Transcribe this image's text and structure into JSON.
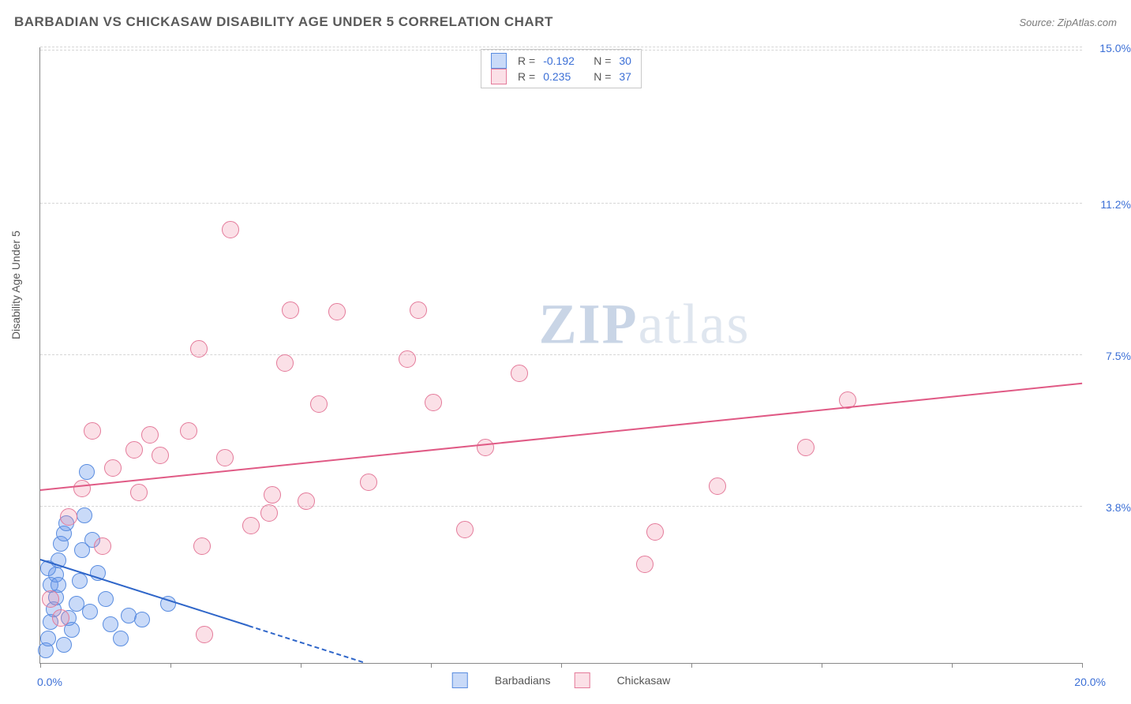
{
  "header": {
    "title": "BARBADIAN VS CHICKASAW DISABILITY AGE UNDER 5 CORRELATION CHART",
    "source_prefix": "Source: ",
    "source": "ZipAtlas.com"
  },
  "chart": {
    "type": "scatter",
    "ylabel": "Disability Age Under 5",
    "xlim": [
      0,
      20
    ],
    "ylim": [
      0,
      15
    ],
    "xticks": [
      0,
      2.5,
      5,
      7.5,
      10,
      12.5,
      15,
      17.5,
      20
    ],
    "yticks": [
      {
        "v": 3.8,
        "label": "3.8%"
      },
      {
        "v": 7.5,
        "label": "7.5%"
      },
      {
        "v": 11.2,
        "label": "11.2%"
      },
      {
        "v": 15.0,
        "label": "15.0%"
      }
    ],
    "xmin_label": "0.0%",
    "xmax_label": "20.0%",
    "background_color": "#ffffff",
    "grid_color": "#d6d6d6",
    "axis_color": "#888888",
    "tick_label_color": "#3b6fd6",
    "watermark": {
      "bold": "ZIP",
      "rest": "atlas"
    },
    "series": [
      {
        "name": "Barbadians",
        "fill_color": "rgba(100,150,235,0.35)",
        "stroke_color": "#5a8de0",
        "marker_size": 18,
        "R": "-0.192",
        "N": "30",
        "trend": {
          "x1": 0,
          "y1": 2.5,
          "x2": 6.2,
          "y2": 0,
          "color": "#2f66c9",
          "width": 2,
          "dash_after_x": 4.0
        },
        "points": [
          [
            0.1,
            0.3
          ],
          [
            0.15,
            0.6
          ],
          [
            0.2,
            1.0
          ],
          [
            0.25,
            1.3
          ],
          [
            0.3,
            1.6
          ],
          [
            0.2,
            1.9
          ],
          [
            0.3,
            2.15
          ],
          [
            0.35,
            2.5
          ],
          [
            0.4,
            2.9
          ],
          [
            0.45,
            3.15
          ],
          [
            0.5,
            3.4
          ],
          [
            0.55,
            1.1
          ],
          [
            0.6,
            0.8
          ],
          [
            0.7,
            1.45
          ],
          [
            0.75,
            2.0
          ],
          [
            0.8,
            2.75
          ],
          [
            0.85,
            3.6
          ],
          [
            0.95,
            1.25
          ],
          [
            1.0,
            3.0
          ],
          [
            1.1,
            2.2
          ],
          [
            1.25,
            1.55
          ],
          [
            1.35,
            0.95
          ],
          [
            0.9,
            4.65
          ],
          [
            1.55,
            0.6
          ],
          [
            1.7,
            1.15
          ],
          [
            1.95,
            1.05
          ],
          [
            2.45,
            1.45
          ],
          [
            0.35,
            1.9
          ],
          [
            0.15,
            2.3
          ],
          [
            0.45,
            0.45
          ]
        ]
      },
      {
        "name": "Chickasaw",
        "fill_color": "rgba(240,130,160,0.25)",
        "stroke_color": "#e47a9a",
        "marker_size": 20,
        "R": "0.235",
        "N": "37",
        "trend": {
          "x1": 0,
          "y1": 4.2,
          "x2": 20,
          "y2": 6.8,
          "color": "#e05a85",
          "width": 2
        },
        "points": [
          [
            0.2,
            1.55
          ],
          [
            0.4,
            1.1
          ],
          [
            0.55,
            3.55
          ],
          [
            0.8,
            4.25
          ],
          [
            1.0,
            5.65
          ],
          [
            1.2,
            2.85
          ],
          [
            1.4,
            4.75
          ],
          [
            1.8,
            5.2
          ],
          [
            1.9,
            4.15
          ],
          [
            2.1,
            5.55
          ],
          [
            2.3,
            5.05
          ],
          [
            2.85,
            5.65
          ],
          [
            3.05,
            7.65
          ],
          [
            3.1,
            2.85
          ],
          [
            3.15,
            0.7
          ],
          [
            3.55,
            5.0
          ],
          [
            3.65,
            10.55
          ],
          [
            4.05,
            3.35
          ],
          [
            4.4,
            3.65
          ],
          [
            4.45,
            4.1
          ],
          [
            4.7,
            7.3
          ],
          [
            4.8,
            8.6
          ],
          [
            5.1,
            3.95
          ],
          [
            5.35,
            6.3
          ],
          [
            5.7,
            8.55
          ],
          [
            6.3,
            4.4
          ],
          [
            7.05,
            7.4
          ],
          [
            7.25,
            8.6
          ],
          [
            7.55,
            6.35
          ],
          [
            8.15,
            3.25
          ],
          [
            8.55,
            5.25
          ],
          [
            9.2,
            7.05
          ],
          [
            11.6,
            2.4
          ],
          [
            11.8,
            3.2
          ],
          [
            13.0,
            4.3
          ],
          [
            14.7,
            5.25
          ],
          [
            15.5,
            6.4
          ]
        ]
      }
    ],
    "legend_top": {
      "rows": [
        {
          "swatch_fill": "rgba(100,150,235,0.35)",
          "swatch_stroke": "#5a8de0",
          "r_label": "R =",
          "r_val": "-0.192",
          "n_label": "N =",
          "n_val": "30"
        },
        {
          "swatch_fill": "rgba(240,130,160,0.25)",
          "swatch_stroke": "#e47a9a",
          "r_label": "R =",
          "r_val": "0.235",
          "n_label": "N =",
          "n_val": "37"
        }
      ]
    },
    "legend_bottom": [
      {
        "swatch_fill": "rgba(100,150,235,0.35)",
        "swatch_stroke": "#5a8de0",
        "label": "Barbadians"
      },
      {
        "swatch_fill": "rgba(240,130,160,0.25)",
        "swatch_stroke": "#e47a9a",
        "label": "Chickasaw"
      }
    ]
  }
}
